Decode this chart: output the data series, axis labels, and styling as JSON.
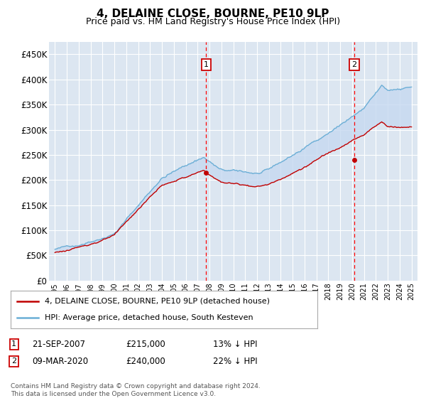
{
  "title": "4, DELAINE CLOSE, BOURNE, PE10 9LP",
  "subtitle": "Price paid vs. HM Land Registry's House Price Index (HPI)",
  "ylabel_ticks": [
    "£0",
    "£50K",
    "£100K",
    "£150K",
    "£200K",
    "£250K",
    "£300K",
    "£350K",
    "£400K",
    "£450K"
  ],
  "ytick_values": [
    0,
    50000,
    100000,
    150000,
    200000,
    250000,
    300000,
    350000,
    400000,
    450000
  ],
  "ylim": [
    0,
    475000
  ],
  "xlim_start": 1994.5,
  "xlim_end": 2025.5,
  "xtick_years": [
    1995,
    1996,
    1997,
    1998,
    1999,
    2000,
    2001,
    2002,
    2003,
    2004,
    2005,
    2006,
    2007,
    2008,
    2009,
    2010,
    2011,
    2012,
    2013,
    2014,
    2015,
    2016,
    2017,
    2018,
    2019,
    2020,
    2021,
    2022,
    2023,
    2024,
    2025
  ],
  "sale1_x": 2007.72,
  "sale1_y": 215000,
  "sale1_label": "1",
  "sale1_date": "21-SEP-2007",
  "sale1_price": "£215,000",
  "sale1_pct": "13% ↓ HPI",
  "sale2_x": 2020.18,
  "sale2_y": 240000,
  "sale2_label": "2",
  "sale2_date": "09-MAR-2020",
  "sale2_price": "£240,000",
  "sale2_pct": "22% ↓ HPI",
  "hpi_color": "#6baed6",
  "price_color": "#c00000",
  "fill_color": "#c6d9f0",
  "vline_color": "#ff0000",
  "bg_color": "#dce6f1",
  "grid_color": "#ffffff",
  "legend_label1": "4, DELAINE CLOSE, BOURNE, PE10 9LP (detached house)",
  "legend_label2": "HPI: Average price, detached house, South Kesteven",
  "footnote": "Contains HM Land Registry data © Crown copyright and database right 2024.\nThis data is licensed under the Open Government Licence v3.0."
}
